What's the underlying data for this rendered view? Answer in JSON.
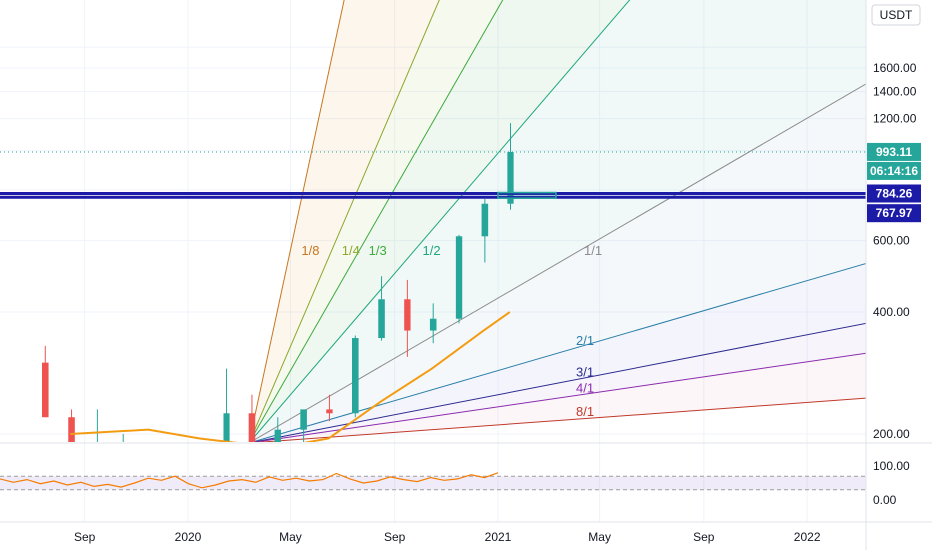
{
  "currency": "USDT",
  "chart_data": {
    "type": "candlestick",
    "title": "",
    "x_ticks": [
      "Sep",
      "2020",
      "May",
      "Sep",
      "2021",
      "May",
      "Sep",
      "2022"
    ],
    "y_ticks": [
      "1600.00",
      "1400.00",
      "1200.00",
      "600.00",
      "400.00",
      "200.00"
    ],
    "y_scale": "log",
    "ylim": [
      190,
      2000
    ],
    "grid": true,
    "price_labels": {
      "last_price": "993.11",
      "countdown": "06:14:16",
      "level_upper": "784.26",
      "level_lower": "767.97"
    },
    "gann_fan": {
      "origin": {
        "date": "2020-03-13",
        "price": 190
      },
      "angles": [
        "1/8",
        "1/4",
        "1/3",
        "1/2",
        "1/1",
        "2/1",
        "3/1",
        "4/1",
        "8/1"
      ]
    },
    "horizontal_levels": [
      784.26,
      767.97
    ],
    "candles_monthly": [
      {
        "period": "Jul 2019",
        "open": 300,
        "high": 330,
        "low": 220,
        "close": 220
      },
      {
        "period": "Aug 2019",
        "open": 220,
        "high": 230,
        "low": 170,
        "close": 175
      },
      {
        "period": "Sep 2019",
        "open": 175,
        "high": 230,
        "low": 155,
        "close": 180
      },
      {
        "period": "Oct 2019",
        "open": 180,
        "high": 200,
        "low": 155,
        "close": 180
      },
      {
        "period": "Nov 2019",
        "open": 180,
        "high": 190,
        "low": 140,
        "close": 150
      },
      {
        "period": "Dec 2019",
        "open": 150,
        "high": 155,
        "low": 120,
        "close": 130
      },
      {
        "period": "Jan 2020",
        "open": 130,
        "high": 185,
        "low": 125,
        "close": 180
      },
      {
        "period": "Feb 2020",
        "open": 180,
        "high": 290,
        "low": 180,
        "close": 225
      },
      {
        "period": "Mar 2020",
        "open": 225,
        "high": 250,
        "low": 90,
        "close": 135
      },
      {
        "period": "Apr 2020",
        "open": 135,
        "high": 220,
        "low": 130,
        "close": 205
      },
      {
        "period": "May 2020",
        "open": 205,
        "high": 225,
        "low": 185,
        "close": 230
      },
      {
        "period": "Jun 2020",
        "open": 230,
        "high": 250,
        "low": 215,
        "close": 225
      },
      {
        "period": "Jul 2020",
        "open": 225,
        "high": 350,
        "low": 220,
        "close": 345
      },
      {
        "period": "Aug 2020",
        "open": 345,
        "high": 490,
        "low": 340,
        "close": 430
      },
      {
        "period": "Sep 2020",
        "open": 430,
        "high": 480,
        "low": 310,
        "close": 360
      },
      {
        "period": "Oct 2020",
        "open": 360,
        "high": 420,
        "low": 335,
        "close": 385
      },
      {
        "period": "Nov 2020",
        "open": 385,
        "high": 620,
        "low": 375,
        "close": 615
      },
      {
        "period": "Dec 2020",
        "open": 615,
        "high": 760,
        "low": 530,
        "close": 740
      },
      {
        "period": "Jan 2021",
        "open": 740,
        "high": 1170,
        "low": 715,
        "close": 993
      }
    ],
    "moving_average": [
      {
        "date": "2019-08",
        "value": 200
      },
      {
        "date": "2019-11",
        "value": 205
      },
      {
        "date": "2020-01",
        "value": 195
      },
      {
        "date": "2020-04",
        "value": 185
      },
      {
        "date": "2020-06",
        "value": 195
      },
      {
        "date": "2020-08",
        "value": 240
      },
      {
        "date": "2020-10",
        "value": 290
      },
      {
        "date": "2020-12",
        "value": 360
      },
      {
        "date": "2021-01",
        "value": 400
      }
    ],
    "oscillator": {
      "name": "",
      "y_ticks": [
        "100.00",
        "0.00"
      ],
      "ylim": [
        -30,
        130
      ],
      "upper_band": 70,
      "lower_band": 30,
      "values": [
        62,
        52,
        60,
        48,
        56,
        44,
        52,
        40,
        46,
        38,
        50,
        64,
        58,
        70,
        48,
        36,
        44,
        56,
        60,
        52,
        68,
        58,
        64,
        56,
        60,
        78,
        62,
        50,
        56,
        68,
        60,
        54,
        66,
        58,
        62,
        74,
        66,
        80
      ]
    }
  }
}
